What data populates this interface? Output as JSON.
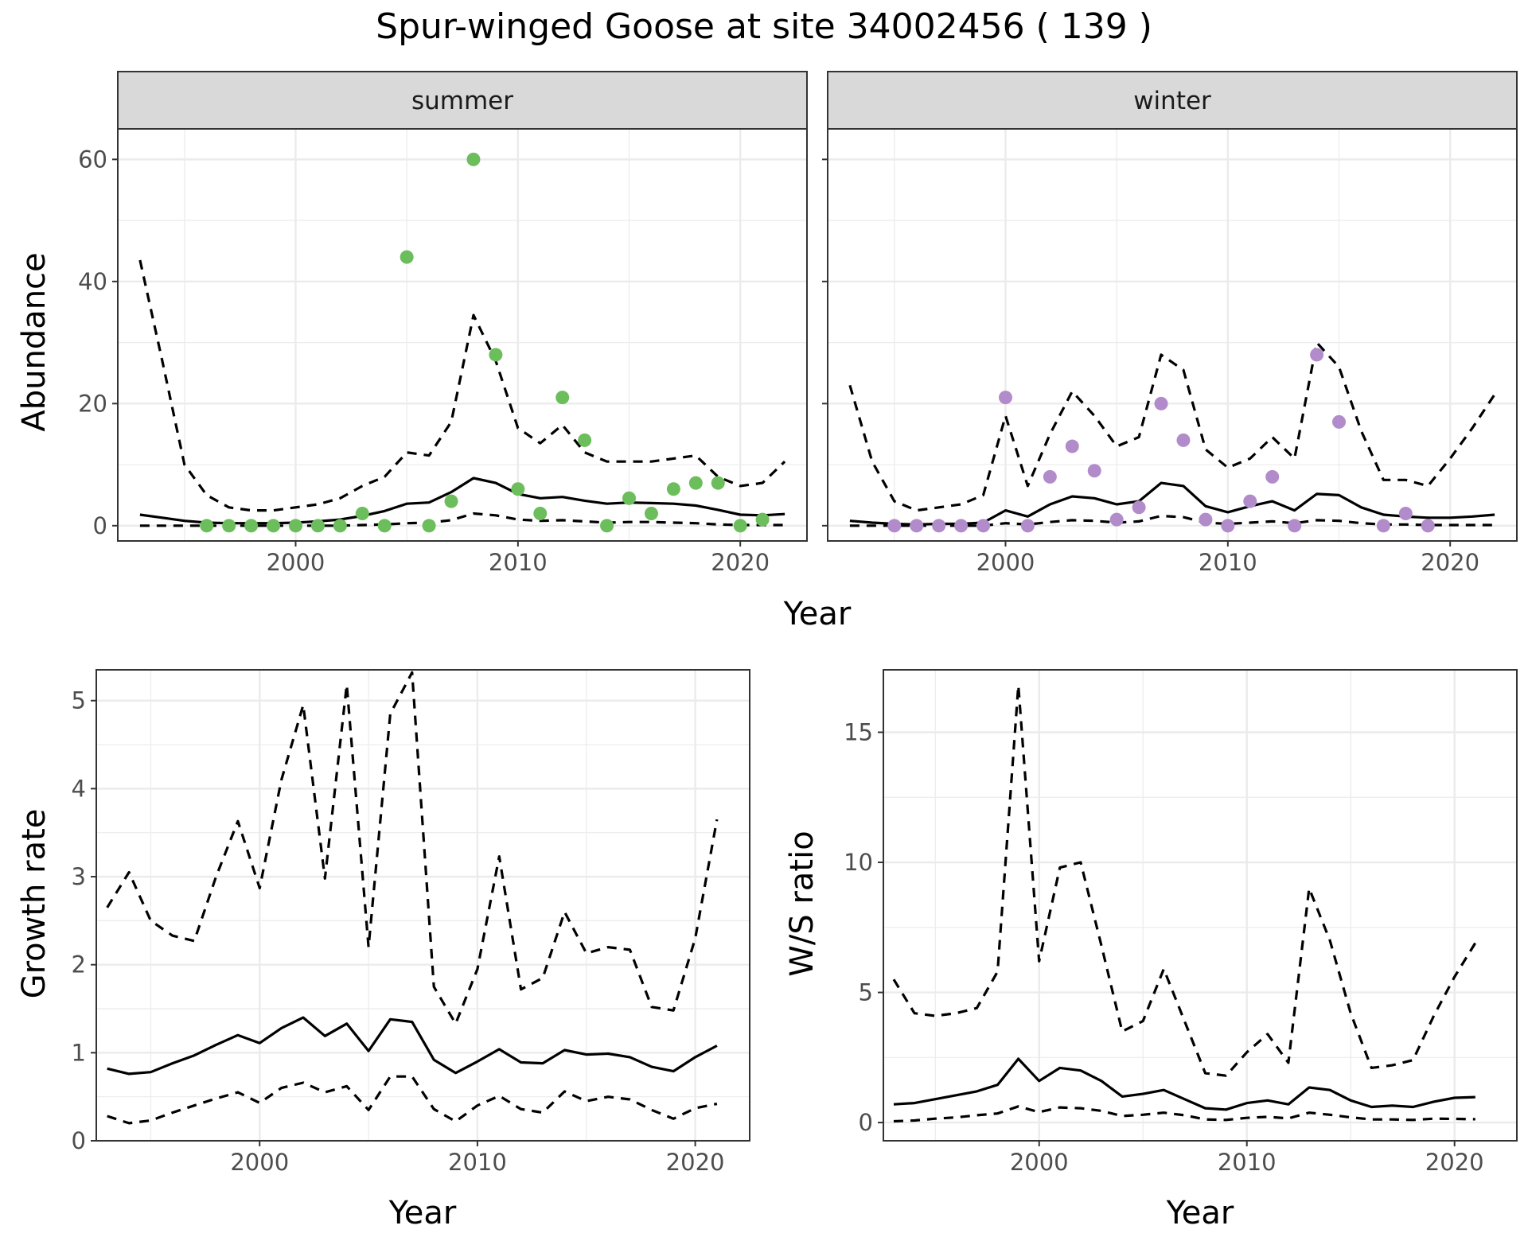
{
  "figure": {
    "title": "Spur-winged Goose at site 34002456 ( 139 )"
  },
  "chart_data": [
    {
      "type": "line",
      "facet": "summer",
      "xlabel": "Year",
      "ylabel": "Abundance",
      "xlim": [
        1992,
        2023
      ],
      "ylim": [
        -2.5,
        65
      ],
      "x_ticks": [
        2000,
        2010,
        2020
      ],
      "y_ticks": [
        0,
        20,
        40,
        60
      ],
      "grid": true,
      "point_color": "#6cbd5b",
      "series": [
        {
          "role": "mean",
          "style": "solid",
          "x": [
            1993,
            1994,
            1995,
            1996,
            1997,
            1998,
            1999,
            2000,
            2001,
            2002,
            2003,
            2004,
            2005,
            2006,
            2007,
            2008,
            2009,
            2010,
            2011,
            2012,
            2013,
            2014,
            2015,
            2016,
            2017,
            2018,
            2019,
            2020,
            2021,
            2022
          ],
          "y": [
            1.8,
            1.3,
            0.8,
            0.5,
            0.4,
            0.4,
            0.4,
            0.5,
            0.7,
            1.0,
            1.6,
            2.4,
            3.6,
            3.8,
            5.5,
            7.8,
            7.0,
            5.2,
            4.5,
            4.7,
            4.1,
            3.6,
            3.8,
            3.7,
            3.6,
            3.3,
            2.6,
            1.8,
            1.7,
            1.9
          ]
        },
        {
          "role": "upper",
          "style": "dashed",
          "x": [
            1993,
            1994,
            1995,
            1996,
            1997,
            1998,
            1999,
            2000,
            2001,
            2002,
            2003,
            2004,
            2005,
            2006,
            2007,
            2008,
            2009,
            2010,
            2011,
            2012,
            2013,
            2014,
            2015,
            2016,
            2017,
            2018,
            2019,
            2020,
            2021,
            2022
          ],
          "y": [
            43.5,
            27,
            10,
            5,
            3,
            2.5,
            2.5,
            3,
            3.5,
            4.5,
            6.5,
            8,
            12,
            11.5,
            17,
            34.5,
            27,
            16,
            13.5,
            16.5,
            12,
            10.5,
            10.5,
            10.5,
            11,
            11.5,
            8,
            6.5,
            7,
            10.5
          ]
        },
        {
          "role": "lower",
          "style": "dashed",
          "x": [
            1993,
            1994,
            1995,
            1996,
            1997,
            1998,
            1999,
            2000,
            2001,
            2002,
            2003,
            2004,
            2005,
            2006,
            2007,
            2008,
            2009,
            2010,
            2011,
            2012,
            2013,
            2014,
            2015,
            2016,
            2017,
            2018,
            2019,
            2020,
            2021,
            2022
          ],
          "y": [
            0,
            0,
            0,
            0,
            0,
            0,
            0,
            0,
            0,
            0,
            0.1,
            0.2,
            0.4,
            0.5,
            0.9,
            2.0,
            1.7,
            1.0,
            0.8,
            0.9,
            0.7,
            0.5,
            0.6,
            0.6,
            0.5,
            0.4,
            0.2,
            0.1,
            0.1,
            0.1
          ]
        },
        {
          "role": "observed",
          "style": "points",
          "x": [
            1996,
            1997,
            1998,
            1999,
            2000,
            2001,
            2002,
            2003,
            2004,
            2005,
            2006,
            2007,
            2008,
            2009,
            2010,
            2011,
            2012,
            2013,
            2014,
            2015,
            2016,
            2017,
            2018,
            2019,
            2020,
            2021
          ],
          "y": [
            0,
            0,
            0,
            0,
            0,
            0,
            0,
            2,
            0,
            44,
            0,
            4,
            60,
            28,
            6,
            2,
            21,
            14,
            0,
            4.5,
            2,
            6,
            7,
            7,
            0,
            1
          ]
        }
      ]
    },
    {
      "type": "line",
      "facet": "winter",
      "xlabel": "Year",
      "ylabel": "Abundance",
      "xlim": [
        1992,
        2023
      ],
      "ylim": [
        -2.5,
        65
      ],
      "x_ticks": [
        2000,
        2010,
        2020
      ],
      "y_ticks": [
        0,
        20,
        40,
        60
      ],
      "grid": true,
      "point_color": "#b28bca",
      "series": [
        {
          "role": "mean",
          "style": "solid",
          "x": [
            1993,
            1994,
            1995,
            1996,
            1997,
            1998,
            1999,
            2000,
            2001,
            2002,
            2003,
            2004,
            2005,
            2006,
            2007,
            2008,
            2009,
            2010,
            2011,
            2012,
            2013,
            2014,
            2015,
            2016,
            2017,
            2018,
            2019,
            2020,
            2021,
            2022
          ],
          "y": [
            0.8,
            0.5,
            0.3,
            0.2,
            0.3,
            0.3,
            0.5,
            2.5,
            1.5,
            3.5,
            4.8,
            4.5,
            3.5,
            4.0,
            7.0,
            6.5,
            3.2,
            2.2,
            3.2,
            4.0,
            2.5,
            5.2,
            5.0,
            3.0,
            1.8,
            1.5,
            1.3,
            1.3,
            1.5,
            1.8
          ]
        },
        {
          "role": "upper",
          "style": "dashed",
          "x": [
            1993,
            1994,
            1995,
            1996,
            1997,
            1998,
            1999,
            2000,
            2001,
            2002,
            2003,
            2004,
            2005,
            2006,
            2007,
            2008,
            2009,
            2010,
            2011,
            2012,
            2013,
            2014,
            2015,
            2016,
            2017,
            2018,
            2019,
            2020,
            2021,
            2022
          ],
          "y": [
            23,
            10.5,
            4,
            2.5,
            3,
            3.5,
            5,
            18,
            6.5,
            15,
            22,
            18,
            13,
            14.5,
            28,
            25.5,
            12.5,
            9.5,
            11,
            14.5,
            11,
            30,
            26,
            15.5,
            7.5,
            7.5,
            6.5,
            11,
            16,
            21.5
          ]
        },
        {
          "role": "lower",
          "style": "dashed",
          "x": [
            1993,
            1994,
            1995,
            1996,
            1997,
            1998,
            1999,
            2000,
            2001,
            2002,
            2003,
            2004,
            2005,
            2006,
            2007,
            2008,
            2009,
            2010,
            2011,
            2012,
            2013,
            2014,
            2015,
            2016,
            2017,
            2018,
            2019,
            2020,
            2021,
            2022
          ],
          "y": [
            0,
            0,
            0,
            0,
            0,
            0,
            0,
            0.4,
            0.2,
            0.6,
            0.9,
            0.8,
            0.5,
            0.7,
            1.6,
            1.4,
            0.5,
            0.3,
            0.5,
            0.7,
            0.4,
            0.9,
            0.8,
            0.4,
            0.2,
            0.2,
            0.1,
            0.1,
            0.1,
            0.1
          ]
        },
        {
          "role": "observed",
          "style": "points",
          "x": [
            1995,
            1996,
            1997,
            1998,
            1999,
            2000,
            2001,
            2002,
            2003,
            2004,
            2005,
            2006,
            2007,
            2008,
            2009,
            2010,
            2011,
            2012,
            2013,
            2014,
            2015,
            2017,
            2018,
            2019
          ],
          "y": [
            0,
            0,
            0,
            0,
            0,
            21,
            0,
            8,
            13,
            9,
            1,
            3,
            20,
            14,
            1,
            0,
            4,
            8,
            0,
            28,
            17,
            0,
            2,
            0
          ]
        }
      ]
    },
    {
      "type": "line",
      "xlabel": "Year",
      "ylabel": "Growth rate",
      "xlim": [
        1992.5,
        2022.5
      ],
      "ylim": [
        0,
        5.35
      ],
      "x_ticks": [
        2000,
        2010,
        2020
      ],
      "y_ticks": [
        0,
        1,
        2,
        3,
        4,
        5
      ],
      "grid": true,
      "series": [
        {
          "role": "mean",
          "style": "solid",
          "x": [
            1993,
            1994,
            1995,
            1996,
            1997,
            1998,
            1999,
            2000,
            2001,
            2002,
            2003,
            2004,
            2005,
            2006,
            2007,
            2008,
            2009,
            2010,
            2011,
            2012,
            2013,
            2014,
            2015,
            2016,
            2017,
            2018,
            2019,
            2020,
            2021
          ],
          "y": [
            0.82,
            0.76,
            0.78,
            0.88,
            0.97,
            1.09,
            1.2,
            1.11,
            1.28,
            1.4,
            1.19,
            1.33,
            1.02,
            1.38,
            1.35,
            0.92,
            0.77,
            0.9,
            1.04,
            0.89,
            0.88,
            1.03,
            0.98,
            0.99,
            0.95,
            0.84,
            0.79,
            0.95,
            1.08
          ]
        },
        {
          "role": "upper",
          "style": "dashed",
          "x": [
            1993,
            1994,
            1995,
            1996,
            1997,
            1998,
            1999,
            2000,
            2001,
            2002,
            2003,
            2004,
            2005,
            2006,
            2007,
            2008,
            2009,
            2010,
            2011,
            2012,
            2013,
            2014,
            2015,
            2016,
            2017,
            2018,
            2019,
            2020,
            2021
          ],
          "y": [
            2.65,
            3.05,
            2.5,
            2.33,
            2.27,
            3.0,
            3.63,
            2.87,
            4.1,
            4.95,
            2.98,
            5.18,
            2.2,
            4.85,
            5.32,
            1.75,
            1.33,
            1.95,
            3.23,
            1.72,
            1.85,
            2.6,
            2.13,
            2.2,
            2.17,
            1.52,
            1.48,
            2.3,
            3.65
          ]
        },
        {
          "role": "lower",
          "style": "dashed",
          "x": [
            1993,
            1994,
            1995,
            1996,
            1997,
            1998,
            1999,
            2000,
            2001,
            2002,
            2003,
            2004,
            2005,
            2006,
            2007,
            2008,
            2009,
            2010,
            2011,
            2012,
            2013,
            2014,
            2015,
            2016,
            2017,
            2018,
            2019,
            2020,
            2021
          ],
          "y": [
            0.28,
            0.2,
            0.23,
            0.32,
            0.4,
            0.48,
            0.55,
            0.43,
            0.6,
            0.66,
            0.55,
            0.62,
            0.35,
            0.73,
            0.73,
            0.36,
            0.22,
            0.4,
            0.51,
            0.36,
            0.32,
            0.56,
            0.45,
            0.5,
            0.47,
            0.35,
            0.25,
            0.37,
            0.42
          ]
        }
      ]
    },
    {
      "type": "line",
      "xlabel": "Year",
      "ylabel": "W/S ratio",
      "xlim": [
        1992.5,
        2023
      ],
      "ylim": [
        -0.7,
        17.4
      ],
      "x_ticks": [
        2000,
        2010,
        2020
      ],
      "y_ticks": [
        0,
        5,
        10,
        15
      ],
      "grid": true,
      "series": [
        {
          "role": "mean",
          "style": "solid",
          "x": [
            1993,
            1994,
            1995,
            1996,
            1997,
            1998,
            1999,
            2000,
            2001,
            2002,
            2003,
            2004,
            2005,
            2006,
            2007,
            2008,
            2009,
            2010,
            2011,
            2012,
            2013,
            2014,
            2015,
            2016,
            2017,
            2018,
            2019,
            2020,
            2021
          ],
          "y": [
            0.7,
            0.75,
            0.9,
            1.05,
            1.2,
            1.45,
            2.45,
            1.6,
            2.1,
            2.0,
            1.6,
            1.0,
            1.1,
            1.25,
            0.9,
            0.55,
            0.5,
            0.75,
            0.85,
            0.7,
            1.35,
            1.25,
            0.85,
            0.6,
            0.65,
            0.6,
            0.8,
            0.95,
            0.98
          ]
        },
        {
          "role": "upper",
          "style": "dashed",
          "x": [
            1993,
            1994,
            1995,
            1996,
            1997,
            1998,
            1999,
            2000,
            2001,
            2002,
            2003,
            2004,
            2005,
            2006,
            2007,
            2008,
            2009,
            2010,
            2011,
            2012,
            2013,
            2014,
            2015,
            2016,
            2017,
            2018,
            2019,
            2020,
            2021
          ],
          "y": [
            5.5,
            4.2,
            4.1,
            4.2,
            4.4,
            5.8,
            16.8,
            6.2,
            9.8,
            10.0,
            6.8,
            3.5,
            3.9,
            5.9,
            3.9,
            1.9,
            1.8,
            2.7,
            3.4,
            2.3,
            9.0,
            7.0,
            4.2,
            2.1,
            2.2,
            2.4,
            4.1,
            5.6,
            6.9
          ]
        },
        {
          "role": "lower",
          "style": "dashed",
          "x": [
            1993,
            1994,
            1995,
            1996,
            1997,
            1998,
            1999,
            2000,
            2001,
            2002,
            2003,
            2004,
            2005,
            2006,
            2007,
            2008,
            2009,
            2010,
            2011,
            2012,
            2013,
            2014,
            2015,
            2016,
            2017,
            2018,
            2019,
            2020,
            2021
          ],
          "y": [
            0.05,
            0.08,
            0.15,
            0.2,
            0.28,
            0.35,
            0.62,
            0.4,
            0.58,
            0.55,
            0.45,
            0.25,
            0.3,
            0.38,
            0.28,
            0.12,
            0.1,
            0.18,
            0.22,
            0.16,
            0.38,
            0.3,
            0.2,
            0.12,
            0.12,
            0.1,
            0.15,
            0.14,
            0.13
          ]
        }
      ]
    }
  ]
}
